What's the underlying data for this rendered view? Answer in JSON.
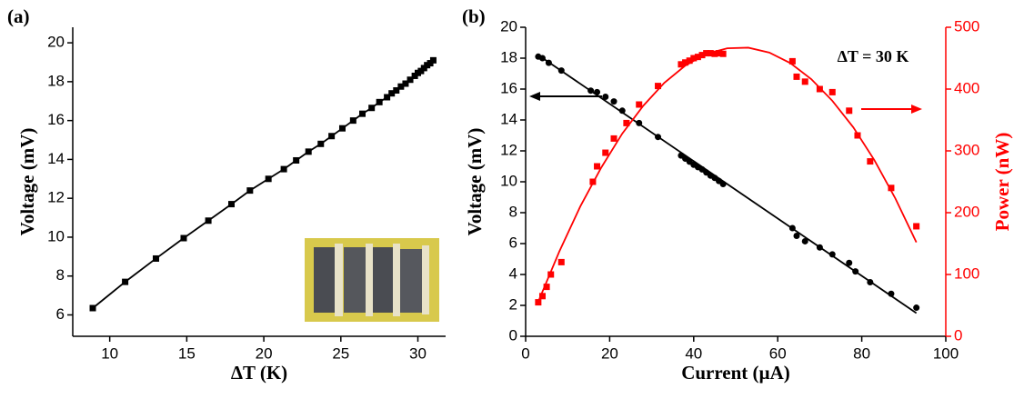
{
  "chart_data": [
    {
      "type": "line",
      "label": "(a)",
      "xlabel": "ΔT (K)",
      "ylabel": "Voltage (mV)",
      "xlim": [
        7.6,
        31.8
      ],
      "xticks": [
        10,
        15,
        20,
        25,
        30
      ],
      "ylim": [
        4.9,
        20.8
      ],
      "yticks": [
        6,
        8,
        10,
        12,
        14,
        16,
        18,
        20
      ],
      "series": [
        {
          "color": "#000000",
          "marker": "square",
          "line": true,
          "x": [
            8.9,
            11.0,
            13.0,
            14.8,
            16.4,
            17.9,
            19.1,
            20.3,
            21.3,
            22.1,
            22.9,
            23.7,
            24.4,
            25.1,
            25.8,
            26.4,
            27.0,
            27.5,
            28.0,
            28.3,
            28.6,
            28.9,
            29.2,
            29.5,
            29.8,
            30.0,
            30.2,
            30.4,
            30.6,
            30.8,
            31.0
          ],
          "values": [
            6.35,
            7.7,
            8.9,
            9.95,
            10.85,
            11.7,
            12.4,
            13.0,
            13.5,
            13.95,
            14.4,
            14.8,
            15.2,
            15.6,
            16.0,
            16.35,
            16.65,
            16.95,
            17.2,
            17.4,
            17.55,
            17.75,
            17.9,
            18.1,
            18.3,
            18.45,
            18.55,
            18.7,
            18.85,
            18.95,
            19.1
          ]
        }
      ]
    },
    {
      "type": "scatter",
      "label": "(b)",
      "annotation": "ΔT = 30 K",
      "xlabel": "Current (µA)",
      "ylabel": "Voltage (mV)",
      "y2label": "Power (nW)",
      "xlim": [
        0,
        100
      ],
      "xticks": [
        0,
        20,
        40,
        60,
        80,
        100
      ],
      "ylim": [
        0,
        20
      ],
      "yticks": [
        0,
        2,
        4,
        6,
        8,
        10,
        12,
        14,
        16,
        18,
        20
      ],
      "y2lim": [
        0,
        500
      ],
      "y2ticks": [
        0,
        100,
        200,
        300,
        400,
        500
      ],
      "y2color": "#ff0000",
      "series": [
        {
          "color": "#000000",
          "marker": "circle",
          "line": false,
          "x": [
            3,
            4,
            5.5,
            8.5,
            15.5,
            17,
            19,
            21,
            23,
            27,
            31.5,
            37,
            38,
            39,
            40,
            41,
            42,
            43,
            44,
            45,
            46,
            47,
            63.5,
            64.5,
            66.5,
            70,
            73,
            77,
            78.5,
            82,
            87,
            93
          ],
          "values": [
            18.1,
            18.0,
            17.7,
            17.2,
            15.9,
            15.8,
            15.5,
            15.2,
            14.6,
            13.8,
            12.9,
            11.7,
            11.5,
            11.3,
            11.1,
            10.95,
            10.8,
            10.6,
            10.4,
            10.25,
            10.05,
            9.85,
            7.0,
            6.5,
            6.15,
            5.75,
            5.3,
            4.75,
            4.2,
            3.5,
            2.75,
            1.85
          ]
        },
        {
          "color": "#000000",
          "marker": "none",
          "line": true,
          "x": [
            3,
            93
          ],
          "values": [
            18.2,
            1.5
          ]
        },
        {
          "color": "#ff0000",
          "marker": "square",
          "line": false,
          "axis": "y2",
          "x": [
            3,
            4,
            5,
            6,
            8.5,
            16,
            17,
            19,
            21,
            24,
            27,
            31.5,
            37,
            38,
            39,
            40,
            41,
            42,
            43,
            44,
            45,
            46,
            47,
            63.5,
            64.5,
            66.5,
            70,
            73,
            77,
            79,
            82,
            87,
            93
          ],
          "values": [
            55,
            65,
            80,
            100,
            120,
            250,
            275,
            297,
            320,
            345,
            375,
            405,
            440,
            443,
            446,
            450,
            452,
            455,
            458,
            458,
            457,
            458,
            457,
            445,
            420,
            412,
            400,
            395,
            365,
            325,
            283,
            240,
            178
          ]
        },
        {
          "color": "#ff0000",
          "marker": "none",
          "line": true,
          "axis": "y2",
          "x": [
            3,
            8,
            13,
            18,
            23,
            28,
            33,
            38,
            43,
            48,
            53,
            58,
            63,
            68,
            73,
            78,
            83,
            88,
            93
          ],
          "values": [
            56,
            137,
            210,
            273,
            328,
            373,
            410,
            438,
            457,
            466,
            467,
            459,
            442,
            416,
            381,
            338,
            285,
            223,
            152
          ]
        }
      ]
    }
  ]
}
